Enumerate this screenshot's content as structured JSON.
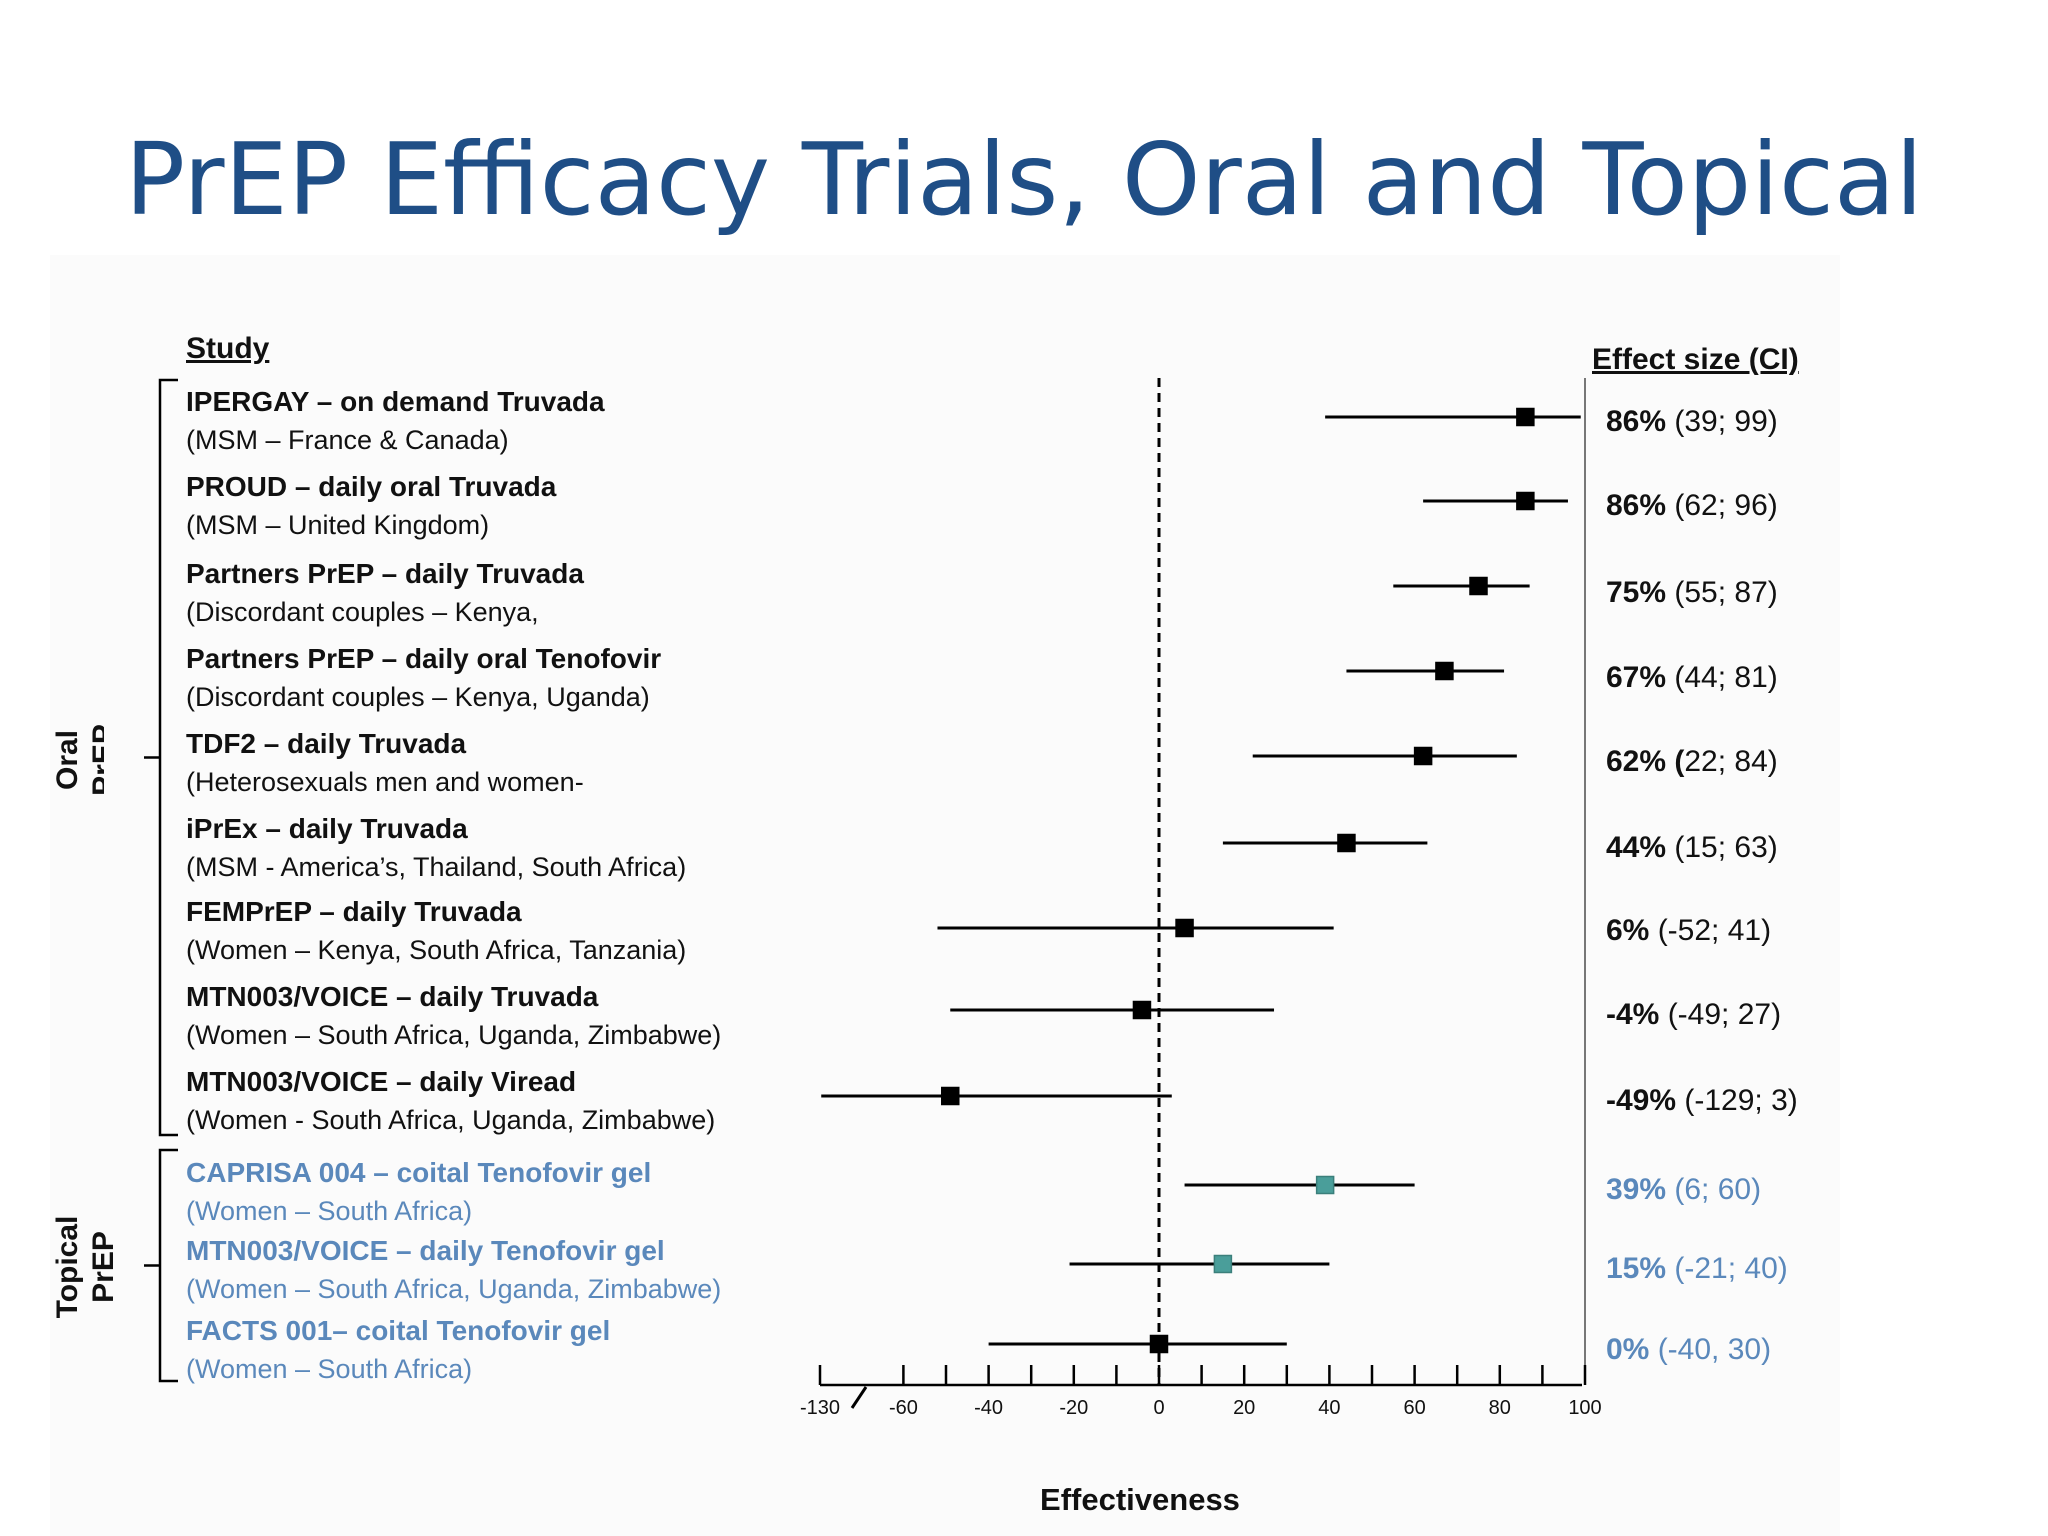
{
  "slide_title": "PrEP Efficacy Trials, Oral and Topical",
  "colors": {
    "title": "#1f4e86",
    "topical_text": "#5a88bb",
    "topical_marker": "#4a9e9a",
    "oral_marker": "#000000"
  },
  "chart_data": {
    "type": "forest",
    "title": "",
    "study_header": "Study",
    "effect_header": "Effect size (CI)",
    "xlabel": "Effectiveness",
    "x_ticks": [
      "-130",
      "-60",
      "-40",
      "-20",
      "0",
      "20",
      "40",
      "60",
      "80",
      "100"
    ],
    "x_tick_values": [
      -130,
      -60,
      -40,
      -20,
      0,
      20,
      40,
      60,
      80,
      100
    ],
    "axis_break": true,
    "reference_line": 0,
    "groups": [
      {
        "label_line1": "Oral",
        "label_line2": "PrEP"
      },
      {
        "label_line1": "Topical",
        "label_line2": "PrEP"
      }
    ],
    "studies": [
      {
        "name": "IPERGAY – on demand Truvada",
        "population": "(MSM – France & Canada)",
        "group": "Oral",
        "estimate": 86,
        "ci_low": 39,
        "ci_high": 99,
        "effect_pct": "86%",
        "effect_ci": " (39; 99)"
      },
      {
        "name": "PROUD – daily oral Truvada",
        "population": "(MSM – United Kingdom)",
        "group": "Oral",
        "estimate": 86,
        "ci_low": 62,
        "ci_high": 96,
        "effect_pct": "86%",
        "effect_ci": " (62; 96)"
      },
      {
        "name": "Partners PrEP – daily Truvada",
        "population": "(Discordant couples – Kenya,",
        "group": "Oral",
        "estimate": 75,
        "ci_low": 55,
        "ci_high": 87,
        "effect_pct": "75%",
        "effect_ci": " (55; 87)"
      },
      {
        "name": "Partners PrEP – daily oral Tenofovir",
        "population": "(Discordant couples – Kenya, Uganda)",
        "group": "Oral",
        "estimate": 67,
        "ci_low": 44,
        "ci_high": 81,
        "effect_pct": "67%",
        "effect_ci": " (44; 81)"
      },
      {
        "name": "TDF2 – daily Truvada",
        "population": "(Heterosexuals men and women-",
        "group": "Oral",
        "estimate": 62,
        "ci_low": 22,
        "ci_high": 84,
        "effect_pct": "62% (",
        "effect_ci": "22; 84)"
      },
      {
        "name": "iPrEx – daily Truvada",
        "population": "(MSM - America’s, Thailand, South Africa)",
        "group": "Oral",
        "estimate": 44,
        "ci_low": 15,
        "ci_high": 63,
        "effect_pct": "44%",
        "effect_ci": " (15; 63)"
      },
      {
        "name": "FEMPrEP – daily Truvada",
        "population": "(Women – Kenya, South Africa, Tanzania)",
        "group": "Oral",
        "estimate": 6,
        "ci_low": -52,
        "ci_high": 41,
        "effect_pct": "6%",
        "effect_ci": " (-52; 41)"
      },
      {
        "name": "MTN003/VOICE – daily Truvada",
        "population": "(Women – South Africa, Uganda, Zimbabwe)",
        "group": "Oral",
        "estimate": -4,
        "ci_low": -49,
        "ci_high": 27,
        "effect_pct": "-4%",
        "effect_ci": " (-49; 27)"
      },
      {
        "name": "MTN003/VOICE – daily Viread",
        "population": "(Women - South Africa, Uganda, Zimbabwe)",
        "group": "Oral",
        "estimate": -49,
        "ci_low": -129,
        "ci_high": 3,
        "effect_pct": "-49%",
        "effect_ci": " (-129; 3)"
      },
      {
        "name": "CAPRISA 004 – coital Tenofovir gel",
        "population": "(Women – South Africa)",
        "group": "Topical",
        "estimate": 39,
        "ci_low": 6,
        "ci_high": 60,
        "effect_pct": "39%",
        "effect_ci": " (6; 60)"
      },
      {
        "name": "MTN003/VOICE – daily Tenofovir gel",
        "population": "(Women – South Africa, Uganda, Zimbabwe)",
        "group": "Topical",
        "estimate": 15,
        "ci_low": -21,
        "ci_high": 40,
        "effect_pct": "15%",
        "effect_ci": " (-21; 40)"
      },
      {
        "name": "FACTS 001– coital Tenofovir gel",
        "population": "(Women – South Africa)",
        "group": "Topical",
        "estimate": 0,
        "ci_low": -40,
        "ci_high": 30,
        "effect_pct": "0%",
        "effect_ci": " (-40, 30)"
      }
    ]
  }
}
